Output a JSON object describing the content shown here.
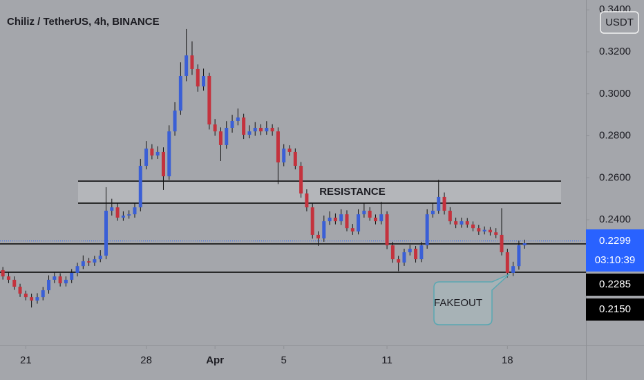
{
  "chart_data": {
    "type": "candlestick",
    "title": "Chiliz / TetherUS, 4h, BINANCE",
    "currency": "USDT",
    "up_color": "#3a5fd6",
    "down_color": "#c4323d",
    "open": [
      0.216,
      0.213,
      0.2114,
      0.2081,
      0.2048,
      0.2031,
      0.2015,
      0.2031,
      0.2064,
      0.2114,
      0.213,
      0.2097,
      0.2114,
      0.2147,
      0.2179,
      0.2202,
      0.2196,
      0.2212,
      0.2229,
      0.2443,
      0.2459,
      0.241,
      0.242,
      0.2426,
      0.2459,
      0.2657,
      0.2739,
      0.2706,
      0.2723,
      0.2607,
      0.2821,
      0.292,
      0.3085,
      0.3183,
      0.3118,
      0.3035,
      0.3085,
      0.2854,
      0.2821,
      0.2756,
      0.2838,
      0.2871,
      0.2887,
      0.2805,
      0.2821,
      0.2838,
      0.2821,
      0.2838,
      0.2821,
      0.2673,
      0.2739,
      0.2723,
      0.2657,
      0.2525,
      0.2459,
      0.2328,
      0.2311,
      0.2393,
      0.241,
      0.2393,
      0.2426,
      0.236,
      0.2344,
      0.2426,
      0.2443,
      0.241,
      0.2393,
      0.2426,
      0.2278,
      0.2212,
      0.2196,
      0.2245,
      0.2262,
      0.2212,
      0.2278,
      0.2426,
      0.2443,
      0.2509,
      0.2443,
      0.2393,
      0.2377,
      0.2393,
      0.2377,
      0.236,
      0.2344,
      0.2352,
      0.234,
      0.2328,
      0.2245,
      0.2147,
      0.2179,
      0.2278
    ],
    "high": [
      0.2175,
      0.2148,
      0.213,
      0.2095,
      0.2062,
      0.2048,
      0.205,
      0.208,
      0.2135,
      0.215,
      0.2145,
      0.213,
      0.2165,
      0.2195,
      0.223,
      0.2218,
      0.2228,
      0.2255,
      0.2555,
      0.25,
      0.2478,
      0.244,
      0.2445,
      0.248,
      0.269,
      0.2775,
      0.276,
      0.275,
      0.2745,
      0.285,
      0.296,
      0.315,
      0.3309,
      0.325,
      0.314,
      0.312,
      0.31,
      0.288,
      0.284,
      0.287,
      0.29,
      0.293,
      0.2905,
      0.285,
      0.2865,
      0.2855,
      0.287,
      0.2855,
      0.284,
      0.276,
      0.2755,
      0.274,
      0.2675,
      0.2545,
      0.248,
      0.2345,
      0.242,
      0.244,
      0.243,
      0.245,
      0.2445,
      0.238,
      0.245,
      0.248,
      0.246,
      0.2425,
      0.2485,
      0.244,
      0.2295,
      0.2228,
      0.2262,
      0.228,
      0.2275,
      0.2295,
      0.245,
      0.248,
      0.259,
      0.253,
      0.246,
      0.241,
      0.241,
      0.2408,
      0.2392,
      0.2375,
      0.2368,
      0.2365,
      0.236,
      0.2455,
      0.2262,
      0.22,
      0.23,
      0.2305
    ],
    "low": [
      0.2115,
      0.2098,
      0.2066,
      0.2032,
      0.2016,
      0.1982,
      0.2,
      0.2016,
      0.2048,
      0.2098,
      0.2082,
      0.2082,
      0.2098,
      0.213,
      0.2165,
      0.218,
      0.218,
      0.2198,
      0.2212,
      0.242,
      0.2395,
      0.2395,
      0.2405,
      0.241,
      0.244,
      0.264,
      0.2688,
      0.269,
      0.2542,
      0.259,
      0.28,
      0.29,
      0.306,
      0.309,
      0.301,
      0.3015,
      0.283,
      0.28,
      0.268,
      0.2738,
      0.2815,
      0.285,
      0.2785,
      0.2788,
      0.28,
      0.2803,
      0.2805,
      0.28,
      0.257,
      0.2655,
      0.2705,
      0.264,
      0.2505,
      0.244,
      0.231,
      0.2275,
      0.2295,
      0.2375,
      0.2378,
      0.2375,
      0.2345,
      0.2328,
      0.233,
      0.241,
      0.2395,
      0.2378,
      0.2378,
      0.226,
      0.2195,
      0.2155,
      0.218,
      0.223,
      0.2196,
      0.2198,
      0.2262,
      0.241,
      0.2428,
      0.2425,
      0.2378,
      0.236,
      0.2362,
      0.2362,
      0.2345,
      0.2328,
      0.233,
      0.2325,
      0.2312,
      0.223,
      0.2125,
      0.2132,
      0.2162,
      0.2262
    ],
    "close": [
      0.213,
      0.2114,
      0.2081,
      0.2048,
      0.2031,
      0.2015,
      0.2031,
      0.2064,
      0.2114,
      0.213,
      0.2097,
      0.2114,
      0.2147,
      0.2179,
      0.2202,
      0.2196,
      0.2212,
      0.2229,
      0.2443,
      0.2459,
      0.241,
      0.242,
      0.2426,
      0.2459,
      0.2657,
      0.2739,
      0.2706,
      0.2723,
      0.2607,
      0.2821,
      0.292,
      0.3085,
      0.3183,
      0.3118,
      0.3035,
      0.3085,
      0.2854,
      0.2821,
      0.2756,
      0.2838,
      0.2871,
      0.2887,
      0.2805,
      0.2821,
      0.2838,
      0.2821,
      0.2838,
      0.2821,
      0.2673,
      0.2739,
      0.2723,
      0.2657,
      0.2525,
      0.2459,
      0.2328,
      0.2311,
      0.2393,
      0.241,
      0.2393,
      0.2426,
      0.236,
      0.2344,
      0.2426,
      0.2443,
      0.241,
      0.2393,
      0.2426,
      0.2278,
      0.2212,
      0.2196,
      0.2245,
      0.2262,
      0.2212,
      0.2278,
      0.2426,
      0.2443,
      0.2509,
      0.2443,
      0.2393,
      0.2377,
      0.2393,
      0.2377,
      0.236,
      0.2344,
      0.2352,
      0.234,
      0.2328,
      0.2245,
      0.2147,
      0.2179,
      0.2278,
      0.2288
    ],
    "xlim": [
      -0.5,
      101.7
    ],
    "xticks": [
      {
        "value": 4,
        "label": "21"
      },
      {
        "value": 25,
        "label": "28"
      },
      {
        "value": 37,
        "label": "Apr"
      },
      {
        "value": 49,
        "label": "5"
      },
      {
        "value": 67,
        "label": "11"
      },
      {
        "value": 88,
        "label": "18"
      }
    ],
    "ylim": [
      0.1801,
      0.3447
    ],
    "yticks": [
      {
        "value": 0.24,
        "label": "0.2400"
      },
      {
        "value": 0.26,
        "label": "0.2600"
      },
      {
        "value": 0.28,
        "label": "0.2800"
      },
      {
        "value": 0.3,
        "label": "0.3000"
      },
      {
        "value": 0.32,
        "label": "0.3200"
      },
      {
        "value": 0.34,
        "label": "0.3400"
      }
    ],
    "last_price": 0.2299,
    "countdown": "03:10:39",
    "levels": [
      0.2285,
      {
        "value": 0.215,
        "label": "0.2150"
      }
    ],
    "resistance_zone": {
      "label": "RESISTANCE",
      "range": [
        0.2479,
        0.2584
      ]
    },
    "annotation": "FAKEOUT"
  }
}
